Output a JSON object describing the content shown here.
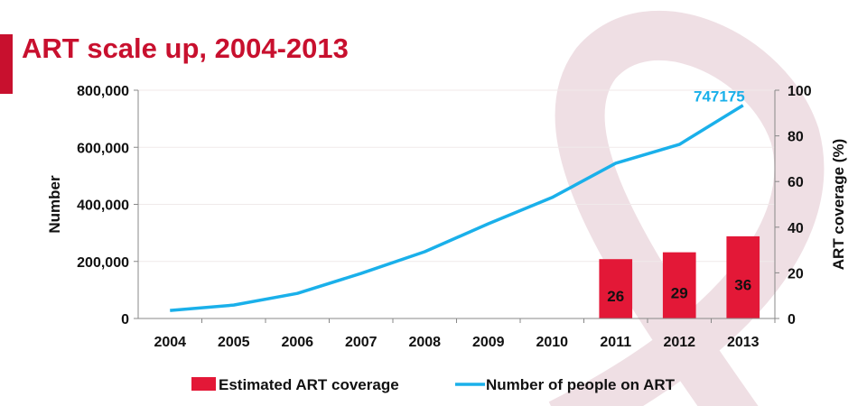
{
  "chart_data": {
    "type": "bar+line",
    "title": "ART scale up, 2004-2013",
    "categories": [
      "2004",
      "2005",
      "2006",
      "2007",
      "2008",
      "2009",
      "2010",
      "2011",
      "2012",
      "2013"
    ],
    "series": [
      {
        "name": "Estimated ART coverage",
        "type": "bar",
        "axis": "right",
        "color": "#e31837",
        "values": [
          null,
          null,
          null,
          null,
          null,
          null,
          null,
          26,
          29,
          36
        ]
      },
      {
        "name": "Number of people on ART",
        "type": "line",
        "axis": "left",
        "color": "#1ab0ea",
        "values": [
          28000,
          47000,
          88000,
          158000,
          234000,
          332000,
          424000,
          544000,
          610000,
          747175
        ]
      }
    ],
    "ylabel": "Number",
    "y2label": "ART coverage (%)",
    "ylim": [
      0,
      800000
    ],
    "y2lim": [
      0,
      100
    ],
    "yticks": [
      "0",
      "200,000",
      "400,000",
      "600,000",
      "800,000"
    ],
    "y2ticks": [
      "0",
      "20",
      "40",
      "60",
      "80",
      "100"
    ],
    "annotations": [
      {
        "text": "747175",
        "category": "2013"
      }
    ],
    "grid": true,
    "legend": "bottom"
  },
  "colors": {
    "title": "#c8102e",
    "bar": "#e31837",
    "line": "#1ab0ea"
  }
}
